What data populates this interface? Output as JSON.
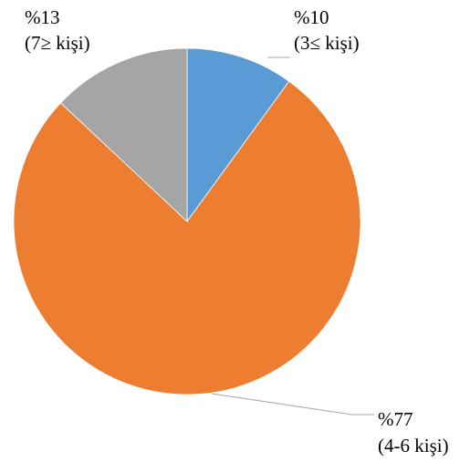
{
  "chart_data": {
    "type": "pie",
    "slices": [
      {
        "percent_label": "%10",
        "category_label": "(3≤ kişi)",
        "value": 10,
        "color": "#5b9bd5"
      },
      {
        "percent_label": "%77",
        "category_label": "(4-6 kişi)",
        "value": 77,
        "color": "#ed7d31"
      },
      {
        "percent_label": "%13",
        "category_label": "(7≥ kişi)",
        "value": 13,
        "color": "#a5a5a5"
      }
    ],
    "start_angle": "12 o'clock",
    "direction": "clockwise",
    "legend": "none",
    "data_labels": "outside with leader lines"
  }
}
